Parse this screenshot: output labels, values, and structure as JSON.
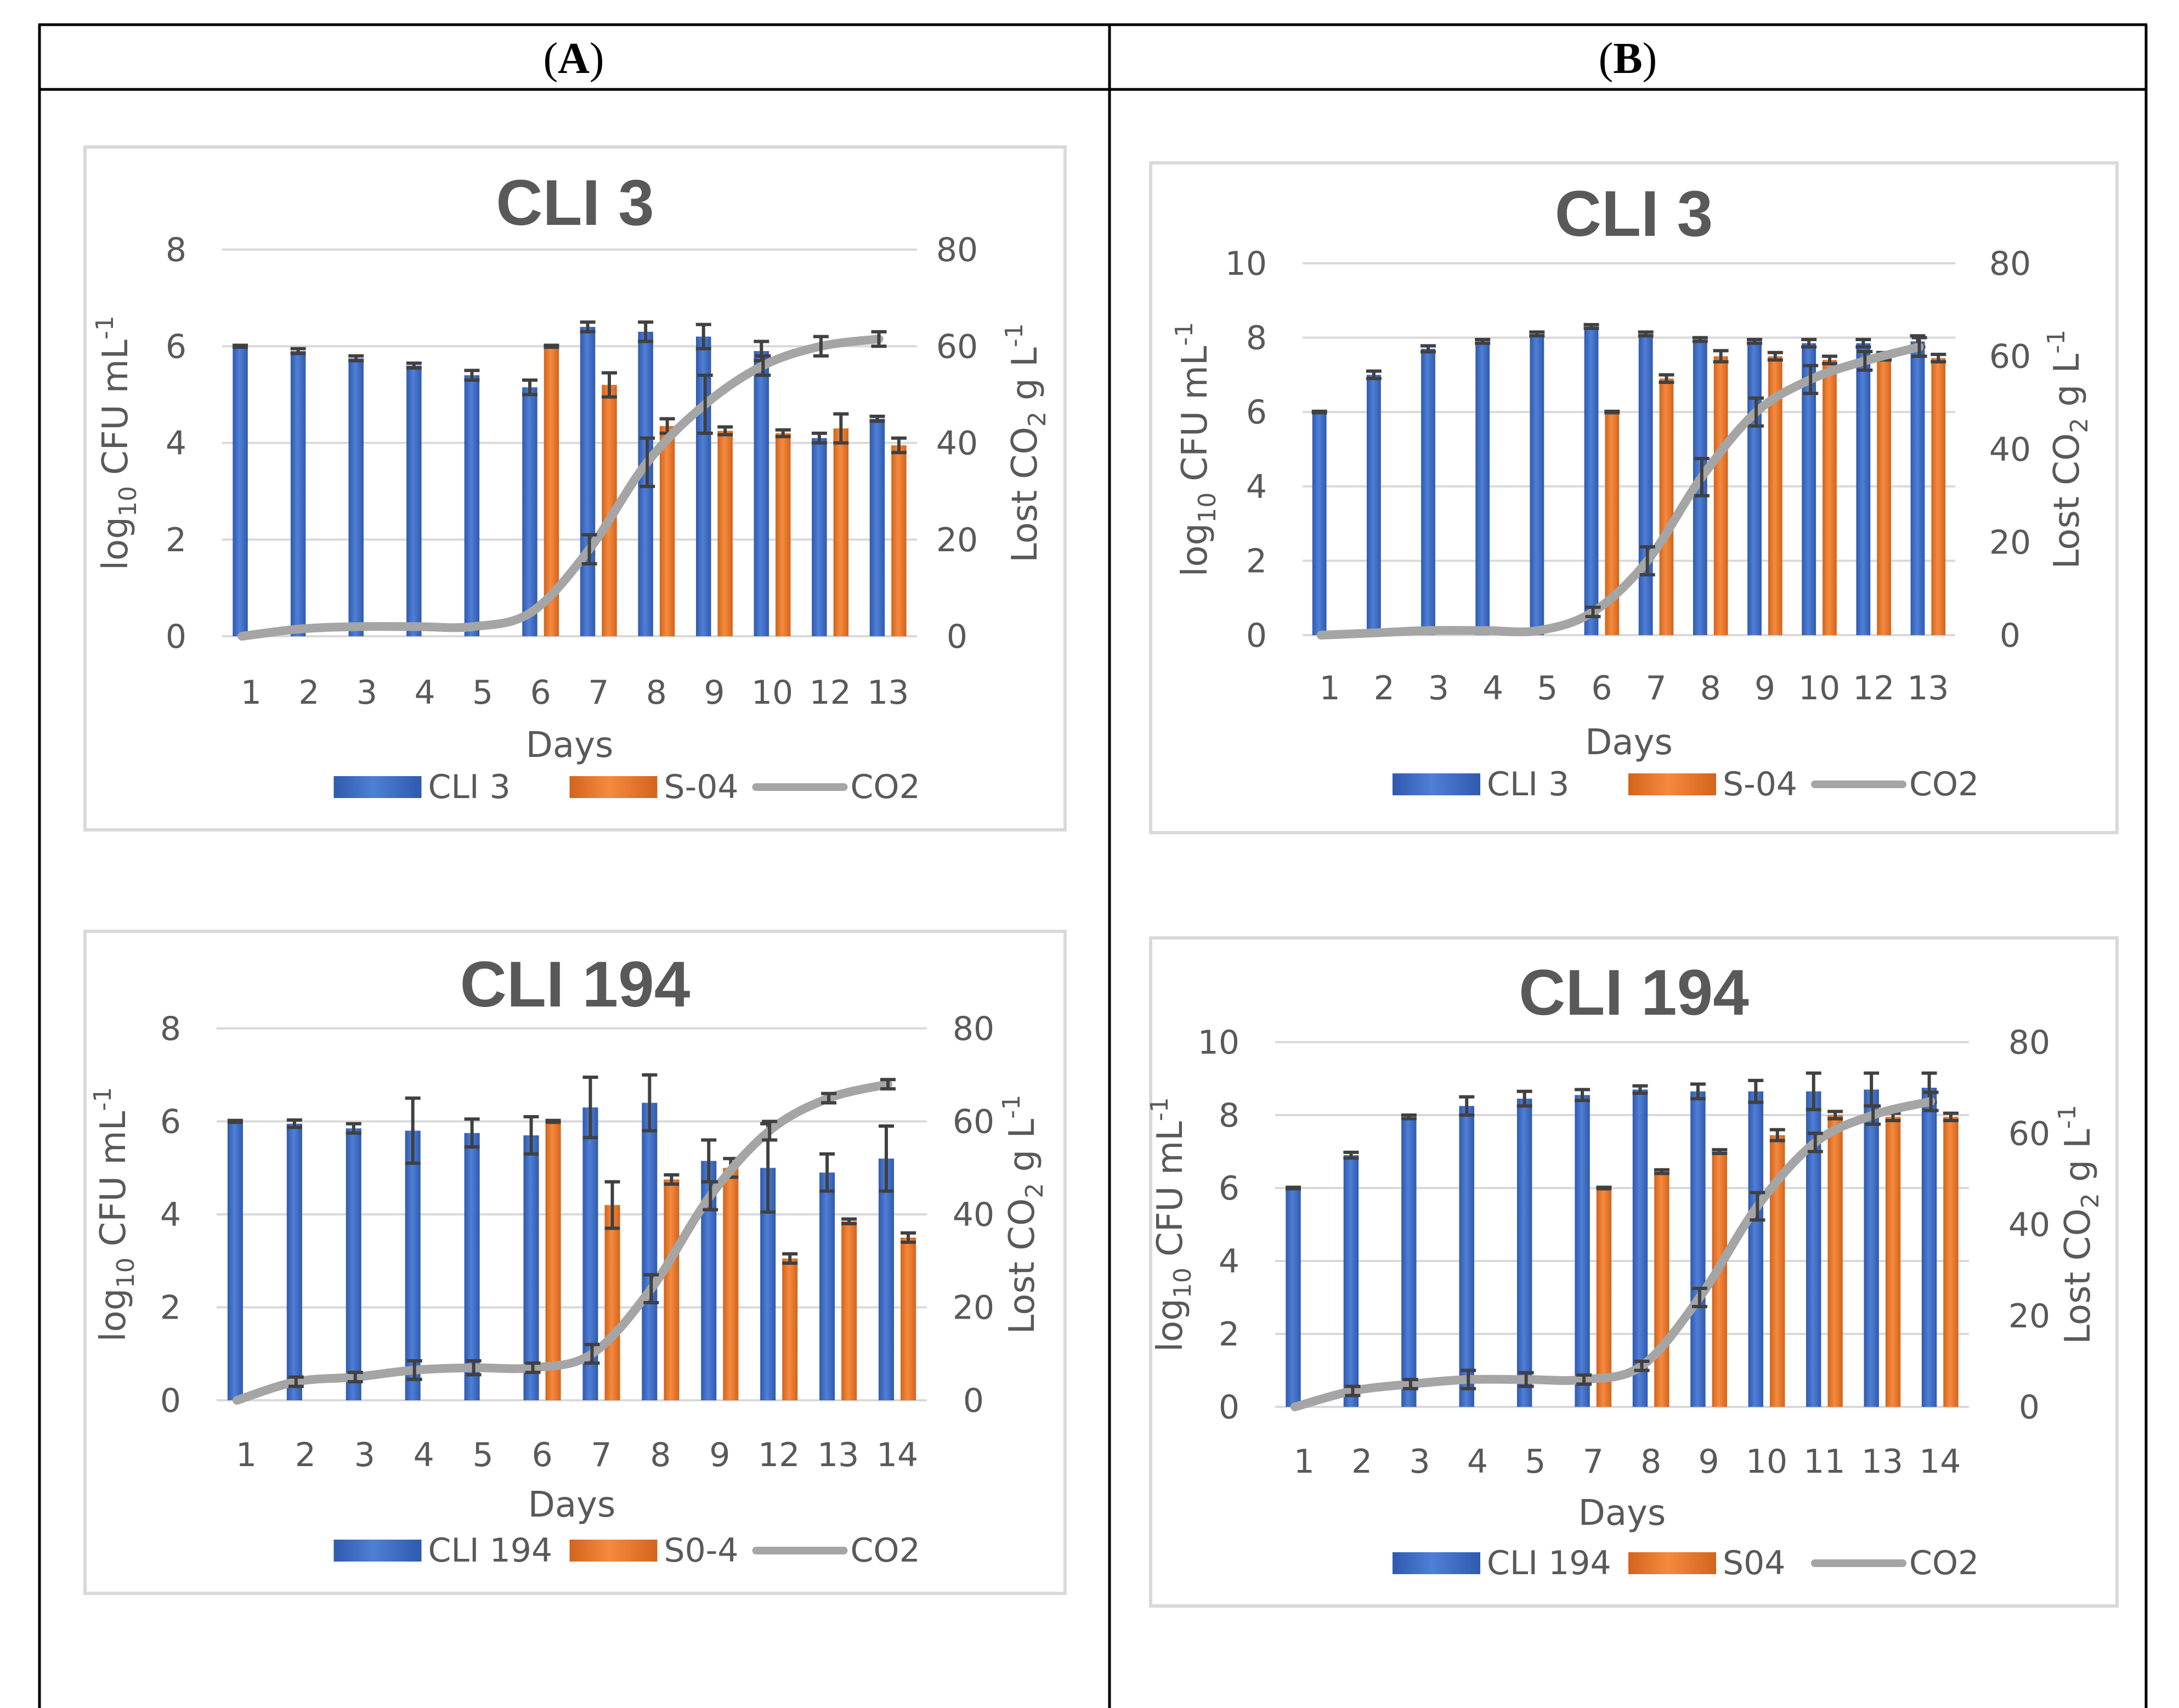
{
  "panels": {
    "A": {
      "open": "(",
      "letter": "A",
      "close": ")"
    },
    "B": {
      "open": "(",
      "letter": "B",
      "close": ")"
    }
  },
  "chart_data": [
    {
      "panel": "A",
      "type": "bar",
      "title": "CLI 3",
      "xlabel": "Days",
      "ylabel": "log10 CFU mL-1",
      "y2label": "Lost CO2 g L-1",
      "categories": [
        "1",
        "2",
        "3",
        "4",
        "5",
        "6",
        "7",
        "8",
        "9",
        "10",
        "12",
        "13"
      ],
      "ylim": [
        0,
        8
      ],
      "yticks": [
        "0",
        "2",
        "4",
        "6",
        "8"
      ],
      "y2lim": [
        0,
        80
      ],
      "y2ticks": [
        "0",
        "20",
        "40",
        "60",
        "80"
      ],
      "series": [
        {
          "name": "CLI 3",
          "axis": "left",
          "color": "#4472C4",
          "values": [
            6.0,
            5.9,
            5.75,
            5.6,
            5.4,
            5.15,
            6.4,
            6.3,
            6.2,
            5.9,
            4.1,
            4.5
          ],
          "errors": [
            0.02,
            0.05,
            0.05,
            0.05,
            0.1,
            0.15,
            0.1,
            0.2,
            0.25,
            0.2,
            0.1,
            0.05
          ]
        },
        {
          "name": "S-04",
          "axis": "left",
          "color": "#ED7D31",
          "values": [
            0,
            0,
            0,
            0,
            0,
            6.0,
            5.2,
            4.35,
            4.25,
            4.2,
            4.3,
            3.95
          ],
          "errors": [
            0,
            0,
            0,
            0,
            0,
            0.02,
            0.25,
            0.15,
            0.08,
            0.07,
            0.3,
            0.15
          ]
        },
        {
          "name": "CO2",
          "axis": "right",
          "type": "line",
          "color": "#A5A5A5",
          "values": [
            0,
            1.5,
            2,
            2,
            2,
            5,
            18,
            36,
            48,
            56,
            60,
            61.5
          ],
          "errors": [
            0,
            0,
            0,
            0,
            0,
            0,
            3,
            5,
            6,
            2,
            2,
            1.5
          ]
        }
      ]
    },
    {
      "panel": "A",
      "type": "bar",
      "title": "CLI 194",
      "xlabel": "Days",
      "ylabel": "log10 CFU mL-1",
      "y2label": "Lost CO2 g L-1",
      "categories": [
        "1",
        "2",
        "3",
        "4",
        "5",
        "6",
        "7",
        "8",
        "9",
        "12",
        "13",
        "14"
      ],
      "ylim": [
        0,
        8
      ],
      "yticks": [
        "0",
        "2",
        "4",
        "6",
        "8"
      ],
      "y2lim": [
        0,
        80
      ],
      "y2ticks": [
        "0",
        "20",
        "40",
        "60",
        "80"
      ],
      "series": [
        {
          "name": "CLI 194",
          "axis": "left",
          "color": "#4472C4",
          "values": [
            6.0,
            5.95,
            5.85,
            5.8,
            5.75,
            5.7,
            6.3,
            6.4,
            5.15,
            5.0,
            4.9,
            5.2
          ],
          "errors": [
            0.02,
            0.08,
            0.1,
            0.7,
            0.3,
            0.4,
            0.65,
            0.6,
            0.45,
            0.95,
            0.4,
            0.7
          ]
        },
        {
          "name": "S0-4",
          "axis": "left",
          "color": "#ED7D31",
          "values": [
            0,
            0,
            0,
            0,
            0,
            6.0,
            4.2,
            4.75,
            5.0,
            3.05,
            3.85,
            3.5
          ],
          "errors": [
            0,
            0,
            0,
            0,
            0,
            0.02,
            0.5,
            0.1,
            0.2,
            0.1,
            0.05,
            0.1
          ]
        },
        {
          "name": "CO2",
          "axis": "right",
          "type": "line",
          "color": "#A5A5A5",
          "values": [
            0,
            4,
            5,
            6.5,
            7,
            7,
            10,
            24,
            44,
            58,
            65,
            68
          ],
          "errors": [
            0,
            1,
            1,
            2,
            1.5,
            1,
            2,
            3,
            3,
            2,
            1,
            1
          ]
        }
      ]
    },
    {
      "panel": "B",
      "type": "bar",
      "title": "CLI 3",
      "xlabel": "Days",
      "ylabel": "log10 CFU mL-1",
      "y2label": "Lost CO2 g L-1",
      "categories": [
        "1",
        "2",
        "3",
        "4",
        "5",
        "6",
        "7",
        "8",
        "9",
        "10",
        "12",
        "13"
      ],
      "ylim": [
        0,
        10
      ],
      "yticks": [
        "0",
        "2",
        "4",
        "6",
        "8",
        "10"
      ],
      "y2lim": [
        0,
        80
      ],
      "y2ticks": [
        "0",
        "20",
        "40",
        "60",
        "80"
      ],
      "series": [
        {
          "name": "CLI 3",
          "axis": "left",
          "color": "#4472C4",
          "values": [
            6.0,
            7.0,
            7.7,
            7.9,
            8.1,
            8.3,
            8.1,
            7.95,
            7.9,
            7.85,
            7.85,
            7.9
          ],
          "errors": [
            0.02,
            0.1,
            0.08,
            0.05,
            0.05,
            0.05,
            0.05,
            0.05,
            0.05,
            0.1,
            0.1,
            0.15
          ]
        },
        {
          "name": "S-04",
          "axis": "left",
          "color": "#ED7D31",
          "values": [
            0,
            0,
            0,
            0,
            0,
            6.0,
            6.9,
            7.5,
            7.5,
            7.4,
            7.5,
            7.45
          ],
          "errors": [
            0,
            0,
            0,
            0,
            0,
            0.02,
            0.1,
            0.15,
            0.1,
            0.1,
            0.1,
            0.1
          ]
        },
        {
          "name": "CO2",
          "axis": "right",
          "type": "line",
          "color": "#A5A5A5",
          "values": [
            0,
            0.5,
            1,
            1,
            1,
            5,
            16,
            34,
            48,
            55,
            59,
            62
          ],
          "errors": [
            0,
            0,
            0,
            0,
            0,
            1,
            3,
            4,
            3,
            3,
            2,
            2
          ]
        }
      ]
    },
    {
      "panel": "B",
      "type": "bar",
      "title": "CLI 194",
      "xlabel": "Days",
      "ylabel": "log10 CFU mL-1",
      "y2label": "Lost CO2 g L-1",
      "categories": [
        "1",
        "2",
        "3",
        "4",
        "5",
        "7",
        "8",
        "9",
        "10",
        "11",
        "13",
        "14"
      ],
      "ylim": [
        0,
        10
      ],
      "yticks": [
        "0",
        "2",
        "4",
        "6",
        "8",
        "10"
      ],
      "y2lim": [
        0,
        80
      ],
      "y2ticks": [
        "0",
        "20",
        "40",
        "60",
        "80"
      ],
      "series": [
        {
          "name": "CLI 194",
          "axis": "left",
          "color": "#4472C4",
          "values": [
            6.0,
            6.9,
            7.95,
            8.25,
            8.45,
            8.55,
            8.7,
            8.65,
            8.65,
            8.65,
            8.7,
            8.75
          ],
          "errors": [
            0.02,
            0.08,
            0.05,
            0.25,
            0.2,
            0.15,
            0.1,
            0.2,
            0.3,
            0.5,
            0.45,
            0.4
          ]
        },
        {
          "name": "S04",
          "axis": "left",
          "color": "#ED7D31",
          "values": [
            0,
            0,
            0,
            0,
            0,
            6.0,
            6.45,
            7.0,
            7.45,
            8.0,
            7.95,
            7.95
          ],
          "errors": [
            0,
            0,
            0,
            0,
            0,
            0.02,
            0.05,
            0.05,
            0.15,
            0.1,
            0.1,
            0.1
          ]
        },
        {
          "name": "CO2",
          "axis": "right",
          "type": "line",
          "color": "#A5A5A5",
          "values": [
            0,
            3.5,
            5,
            6,
            6,
            6,
            9,
            24,
            44,
            58,
            64,
            67
          ],
          "errors": [
            0,
            1,
            1,
            2,
            1.5,
            1,
            1,
            2,
            3,
            2,
            2,
            2
          ]
        }
      ]
    }
  ]
}
